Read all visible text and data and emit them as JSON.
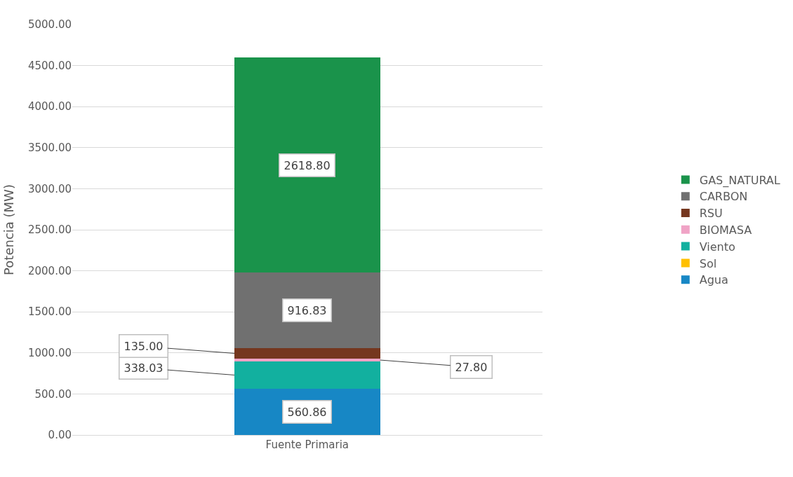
{
  "chart_data": {
    "type": "bar",
    "stacked": true,
    "ylabel": "Potencia (MW)",
    "categories": [
      "Fuente Primaria"
    ],
    "series": [
      {
        "name": "Agua",
        "color": "#1787c5",
        "values": [
          560.86
        ],
        "value_labels": [
          "560.86"
        ]
      },
      {
        "name": "Sol",
        "color": "#ffc000",
        "values": [
          null
        ],
        "value_labels": [
          null
        ]
      },
      {
        "name": "Viento",
        "color": "#12b09f",
        "values": [
          338.03
        ],
        "value_labels": [
          "338.03"
        ]
      },
      {
        "name": "BIOMASA",
        "color": "#f0a3c6",
        "values": [
          27.8
        ],
        "value_labels": [
          "27.80"
        ]
      },
      {
        "name": "RSU",
        "color": "#75371f",
        "values": [
          135.0
        ],
        "value_labels": [
          "135.00"
        ]
      },
      {
        "name": "CARBON",
        "color": "#707070",
        "values": [
          916.83
        ],
        "value_labels": [
          "916.83"
        ]
      },
      {
        "name": "GAS_NATURAL",
        "color": "#1a934b",
        "values": [
          2618.8
        ],
        "value_labels": [
          "2618.80"
        ]
      }
    ],
    "ylim": [
      0,
      5000
    ],
    "yticks": [
      {
        "value": 0,
        "label": "0.00"
      },
      {
        "value": 500,
        "label": "500.00"
      },
      {
        "value": 1000,
        "label": "1000.00"
      },
      {
        "value": 1500,
        "label": "1500.00"
      },
      {
        "value": 2000,
        "label": "2000.00"
      },
      {
        "value": 2500,
        "label": "2500.00"
      },
      {
        "value": 3000,
        "label": "3000.00"
      },
      {
        "value": 3500,
        "label": "3500.00"
      },
      {
        "value": 4000,
        "label": "4000.00"
      },
      {
        "value": 4500,
        "label": "4500.00"
      },
      {
        "value": 5000,
        "label": "5000.00"
      }
    ],
    "grid": "y",
    "legend": "right"
  }
}
